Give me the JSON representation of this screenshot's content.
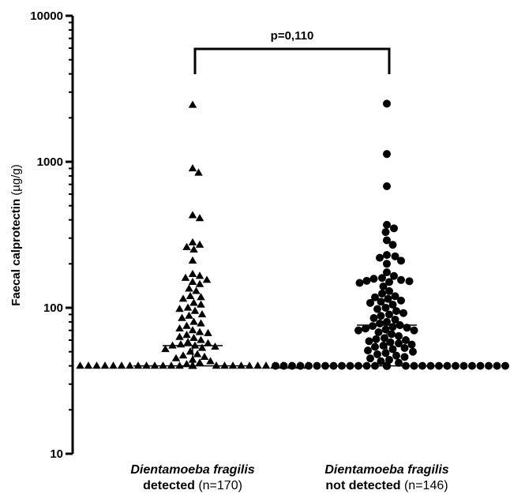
{
  "chart_data": {
    "type": "scatter",
    "y_scale": "log",
    "ylim": [
      10,
      10000
    ],
    "y_ticks": [
      "10",
      "100",
      "1000",
      "10000"
    ],
    "ylabel": {
      "bold": "Faecal calprotectin",
      "normal": " (µg/g)"
    },
    "annotation": "p=0,110",
    "groups": [
      {
        "label_italic": "Dientamoeba fragilis",
        "label_bold": "detected",
        "label_normal": " (n=170)",
        "marker": "triangle",
        "median": 40,
        "iqr_upper": 55,
        "values": [
          2450,
          900,
          840,
          430,
          410,
          280,
          270,
          260,
          250,
          210,
          170,
          165,
          160,
          155,
          150,
          145,
          135,
          130,
          120,
          118,
          115,
          108,
          105,
          100,
          98,
          95,
          90,
          88,
          85,
          80,
          78,
          75,
          72,
          70,
          68,
          67,
          65,
          63,
          62,
          60,
          58,
          57,
          56,
          55,
          55,
          54,
          53,
          52,
          50,
          48,
          47,
          46,
          45,
          44,
          43,
          42,
          41,
          40,
          40,
          40,
          40,
          40,
          40,
          40,
          40,
          40,
          40,
          40,
          40,
          40,
          40,
          40,
          40,
          40,
          40,
          40,
          40,
          40,
          40,
          40,
          40,
          40,
          40,
          40,
          40,
          40,
          40,
          40,
          40,
          40,
          40,
          40,
          40,
          40,
          40,
          40,
          40,
          40,
          40,
          40,
          40,
          40,
          40,
          40,
          40,
          40,
          40,
          40,
          40,
          40,
          40,
          40,
          40,
          40,
          40,
          40,
          40,
          40,
          40,
          40,
          40,
          40,
          40,
          40,
          40,
          40,
          40,
          40,
          40,
          40,
          40,
          40,
          40,
          40,
          40,
          40,
          40,
          40,
          40,
          40,
          40,
          40,
          40,
          40,
          40,
          40,
          40,
          40,
          40,
          40,
          40,
          40,
          40,
          40,
          40,
          40,
          40,
          40,
          40,
          40,
          40,
          40,
          40,
          40,
          40,
          40,
          40,
          40,
          40,
          40
        ]
      },
      {
        "label_italic": "Dientamoeba fragilis",
        "label_bold": "not detected",
        "label_normal": " (n=146)",
        "marker": "circle",
        "median": 40,
        "iqr_upper": 76,
        "values": [
          2500,
          1130,
          680,
          370,
          350,
          330,
          290,
          270,
          230,
          225,
          220,
          210,
          200,
          175,
          165,
          160,
          158,
          155,
          153,
          152,
          150,
          148,
          140,
          130,
          125,
          120,
          118,
          115,
          112,
          110,
          108,
          105,
          100,
          98,
          95,
          92,
          90,
          88,
          85,
          83,
          80,
          78,
          76,
          75,
          74,
          73,
          72,
          71,
          70,
          70,
          68,
          66,
          64,
          62,
          61,
          60,
          59,
          58,
          57,
          56,
          55,
          54,
          53,
          52,
          51,
          50,
          49,
          48,
          47,
          46,
          45,
          44,
          43,
          42,
          40,
          40,
          40,
          40,
          40,
          40,
          40,
          40,
          40,
          40,
          40,
          40,
          40,
          40,
          40,
          40,
          40,
          40,
          40,
          40,
          40,
          40,
          40,
          40,
          40,
          40,
          40,
          40,
          40,
          40,
          40,
          40,
          40,
          40,
          40,
          40,
          40,
          40,
          40,
          40,
          40,
          40,
          40,
          40,
          40,
          40,
          40,
          40,
          40,
          40,
          40,
          40,
          40,
          40,
          40,
          40,
          40,
          40,
          40,
          40,
          40,
          40,
          40,
          40,
          40,
          40,
          40,
          40,
          40,
          40,
          40,
          40
        ]
      }
    ]
  }
}
